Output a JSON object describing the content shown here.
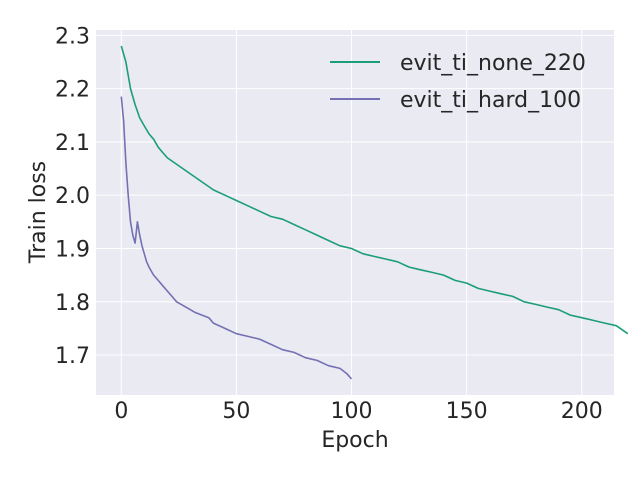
{
  "chart_data": {
    "type": "line",
    "title": "",
    "xlabel": "Epoch",
    "ylabel": "Train loss",
    "xlim": [
      -11,
      214
    ],
    "ylim": [
      1.625,
      2.31
    ],
    "xticks": [
      0,
      50,
      100,
      150,
      200
    ],
    "yticks": [
      1.7,
      1.8,
      1.9,
      2.0,
      2.1,
      2.2,
      2.3
    ],
    "ytick_labels": [
      "1.7",
      "1.8",
      "1.9",
      "2.0",
      "2.1",
      "2.2",
      "2.3"
    ],
    "grid": true,
    "legend_position": "top-right",
    "background": "#eaeaf2",
    "series": [
      {
        "name": "evit_ti_none_220",
        "color": "#1b9e77",
        "x": [
          0,
          2,
          4,
          6,
          8,
          10,
          12,
          14,
          16,
          18,
          20,
          25,
          30,
          35,
          40,
          45,
          50,
          55,
          60,
          65,
          70,
          75,
          80,
          85,
          90,
          95,
          100,
          105,
          110,
          115,
          120,
          125,
          130,
          135,
          140,
          145,
          150,
          155,
          160,
          165,
          170,
          175,
          180,
          185,
          190,
          195,
          200,
          205,
          210,
          215,
          220
        ],
        "values": [
          2.28,
          2.25,
          2.2,
          2.17,
          2.145,
          2.13,
          2.115,
          2.105,
          2.09,
          2.08,
          2.07,
          2.055,
          2.04,
          2.025,
          2.01,
          2.0,
          1.99,
          1.98,
          1.97,
          1.96,
          1.955,
          1.945,
          1.935,
          1.925,
          1.915,
          1.905,
          1.9,
          1.89,
          1.885,
          1.88,
          1.875,
          1.865,
          1.86,
          1.855,
          1.85,
          1.84,
          1.835,
          1.825,
          1.82,
          1.815,
          1.81,
          1.8,
          1.795,
          1.79,
          1.785,
          1.775,
          1.77,
          1.765,
          1.76,
          1.755,
          1.74
        ]
      },
      {
        "name": "evit_ti_hard_100",
        "color": "#7570b3",
        "x": [
          0,
          1,
          2,
          3,
          4,
          5,
          6,
          7,
          8,
          9,
          10,
          11,
          12,
          14,
          16,
          18,
          20,
          22,
          24,
          26,
          28,
          30,
          32,
          35,
          38,
          40,
          45,
          50,
          55,
          60,
          65,
          70,
          75,
          80,
          85,
          90,
          95,
          98,
          100
        ],
        "values": [
          2.185,
          2.14,
          2.06,
          2.0,
          1.95,
          1.925,
          1.91,
          1.95,
          1.925,
          1.905,
          1.89,
          1.875,
          1.865,
          1.85,
          1.84,
          1.83,
          1.82,
          1.81,
          1.8,
          1.795,
          1.79,
          1.785,
          1.78,
          1.775,
          1.77,
          1.76,
          1.75,
          1.74,
          1.735,
          1.73,
          1.72,
          1.71,
          1.705,
          1.695,
          1.69,
          1.68,
          1.675,
          1.665,
          1.655
        ]
      }
    ]
  }
}
